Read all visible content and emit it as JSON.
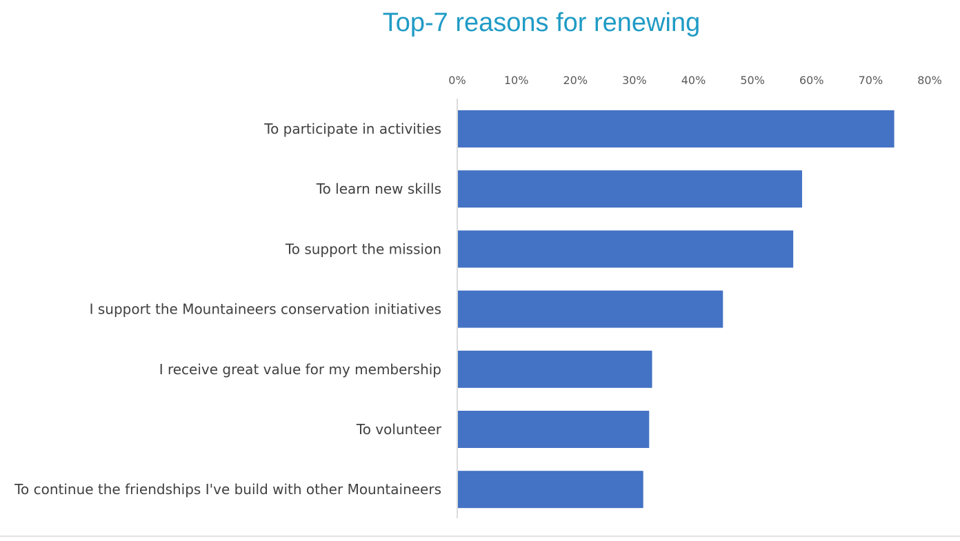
{
  "chart_data": {
    "type": "bar",
    "orientation": "horizontal",
    "title": "Top-7 reasons for renewing",
    "categories": [
      "To participate in activities",
      "To learn new skills",
      "To support the mission",
      "I support the Mountaineers conservation initiatives",
      "I receive great value for my membership",
      "To volunteer",
      "To continue the friendships I've build with other Mountaineers"
    ],
    "values": [
      0.74,
      0.584,
      0.569,
      0.45,
      0.33,
      0.325,
      0.315
    ],
    "xlim": [
      0,
      0.8
    ],
    "x_ticks": [
      "0%",
      "10%",
      "20%",
      "30%",
      "40%",
      "50%",
      "60%",
      "70%",
      "80%"
    ],
    "x_axis_position": "top",
    "grid": false,
    "legend": "none",
    "bar_color": "#4472c4",
    "title_color": "#1f9bc5"
  }
}
